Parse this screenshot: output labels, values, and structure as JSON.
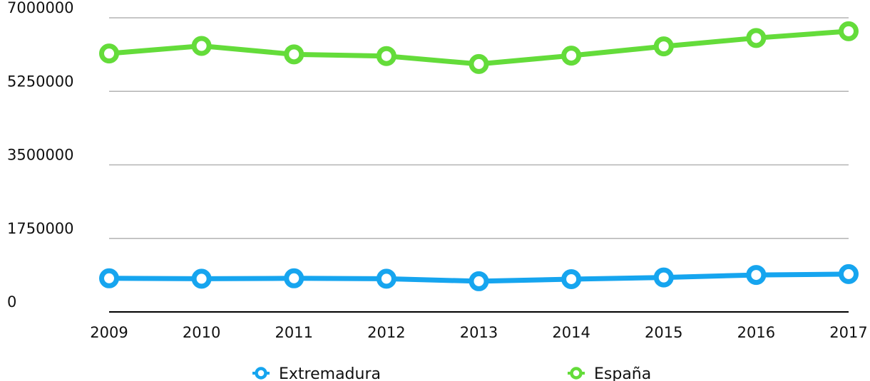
{
  "chart_data": {
    "type": "line",
    "title": "",
    "xlabel": "",
    "ylabel": "",
    "x": [
      "2009",
      "2010",
      "2011",
      "2012",
      "2013",
      "2014",
      "2015",
      "2016",
      "2017"
    ],
    "ylim": [
      0,
      7000000
    ],
    "y_ticks": [
      "0",
      "1750000",
      "3500000",
      "5250000",
      "7000000"
    ],
    "grid": true,
    "legend_position": "bottom",
    "series": [
      {
        "name": "Extremadura",
        "color": "#16a5ef",
        "values": [
          800000,
          790000,
          800000,
          790000,
          730000,
          780000,
          820000,
          880000,
          900000
        ]
      },
      {
        "name": "España",
        "color": "#64dc3a",
        "values": [
          6150000,
          6330000,
          6130000,
          6090000,
          5900000,
          6100000,
          6320000,
          6520000,
          6680000
        ]
      }
    ]
  }
}
